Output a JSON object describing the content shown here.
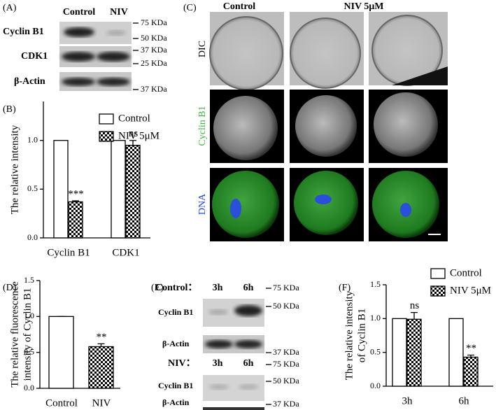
{
  "panel_labels": [
    "(A)",
    "(B)",
    "(C)",
    "(D)",
    "(E)",
    "(F)"
  ],
  "blot_a": {
    "lanes": [
      "Control",
      "NIV"
    ],
    "rows": [
      "Cyclin B1",
      "CDK1",
      "β-Actin"
    ],
    "markers": [
      "75 KDa",
      "50 KDa",
      "37 KDa",
      "25 KDa",
      "37 KDa"
    ]
  },
  "microscopy": {
    "columns": [
      "Control",
      "NIV 5μM"
    ],
    "rows": [
      "DIC",
      "Cyclin B1",
      "DNA"
    ]
  },
  "blot_e": {
    "groups": [
      {
        "name": "Control：",
        "lanes": [
          "3h",
          "6h"
        ],
        "rows": [
          "Cyclin B1",
          "β-Actin"
        ],
        "markers": [
          "75 KDa",
          "50 KDa",
          "37 KDa"
        ]
      },
      {
        "name": "NIV：",
        "lanes": [
          "3h",
          "6h"
        ],
        "rows": [
          "Cyclin B1",
          "β-Actin"
        ],
        "markers": [
          "75 KDa",
          "50 KDa",
          "37 KDa"
        ]
      }
    ]
  },
  "chart_data": [
    {
      "type": "bar",
      "y_label": [
        "The relative intensity"
      ],
      "categories": [
        "Cyclin B1",
        "CDK1"
      ],
      "series": [
        {
          "name": "Control",
          "color": "#ffffff",
          "values": [
            1,
            1
          ]
        },
        {
          "name": "NIV 5μM",
          "color": "checker",
          "values": [
            0.37,
            0.95
          ],
          "errors": [
            0.01,
            0.05
          ],
          "annotations": [
            "***",
            "ns"
          ]
        }
      ],
      "ylim": [
        0,
        1.4
      ],
      "yticks": [
        {
          "value": 0,
          "label": "0.0"
        },
        0.5,
        {
          "value": 1,
          "label": "1.0"
        }
      ],
      "legend": "upper right"
    },
    {
      "type": "bar",
      "y_label": [
        "The relative fluorescence",
        "intensity of Cyclin B1"
      ],
      "categories": [
        "Control",
        "NIV"
      ],
      "series": [
        {
          "color": "mixed",
          "values": [
            1,
            0.58
          ],
          "errors": [
            0,
            0.04
          ],
          "annotations": [
            null,
            "**"
          ]
        }
      ],
      "ylim": [
        0,
        1.5
      ],
      "yticks": [
        {
          "value": 0,
          "label": "0.0"
        },
        0.5,
        {
          "value": 1,
          "label": "1.0"
        },
        1.5
      ]
    },
    {
      "type": "bar",
      "y_label": [
        "The relative intensity",
        "of  Cyclin B1"
      ],
      "categories": [
        "3h",
        "6h"
      ],
      "series": [
        {
          "name": "Control",
          "color": "#ffffff",
          "values": [
            1,
            1
          ]
        },
        {
          "name": "NIV 5μM",
          "color": "checker",
          "values": [
            0.99,
            0.43
          ],
          "errors": [
            0.1,
            0.03
          ],
          "annotations": [
            "ns",
            "**"
          ]
        }
      ],
      "ylim": [
        0,
        1.5
      ],
      "yticks": [
        {
          "value": 0,
          "label": "0.0"
        },
        0.5,
        {
          "value": 1,
          "label": "1.0"
        },
        1.5
      ],
      "legend": "upper right"
    }
  ]
}
